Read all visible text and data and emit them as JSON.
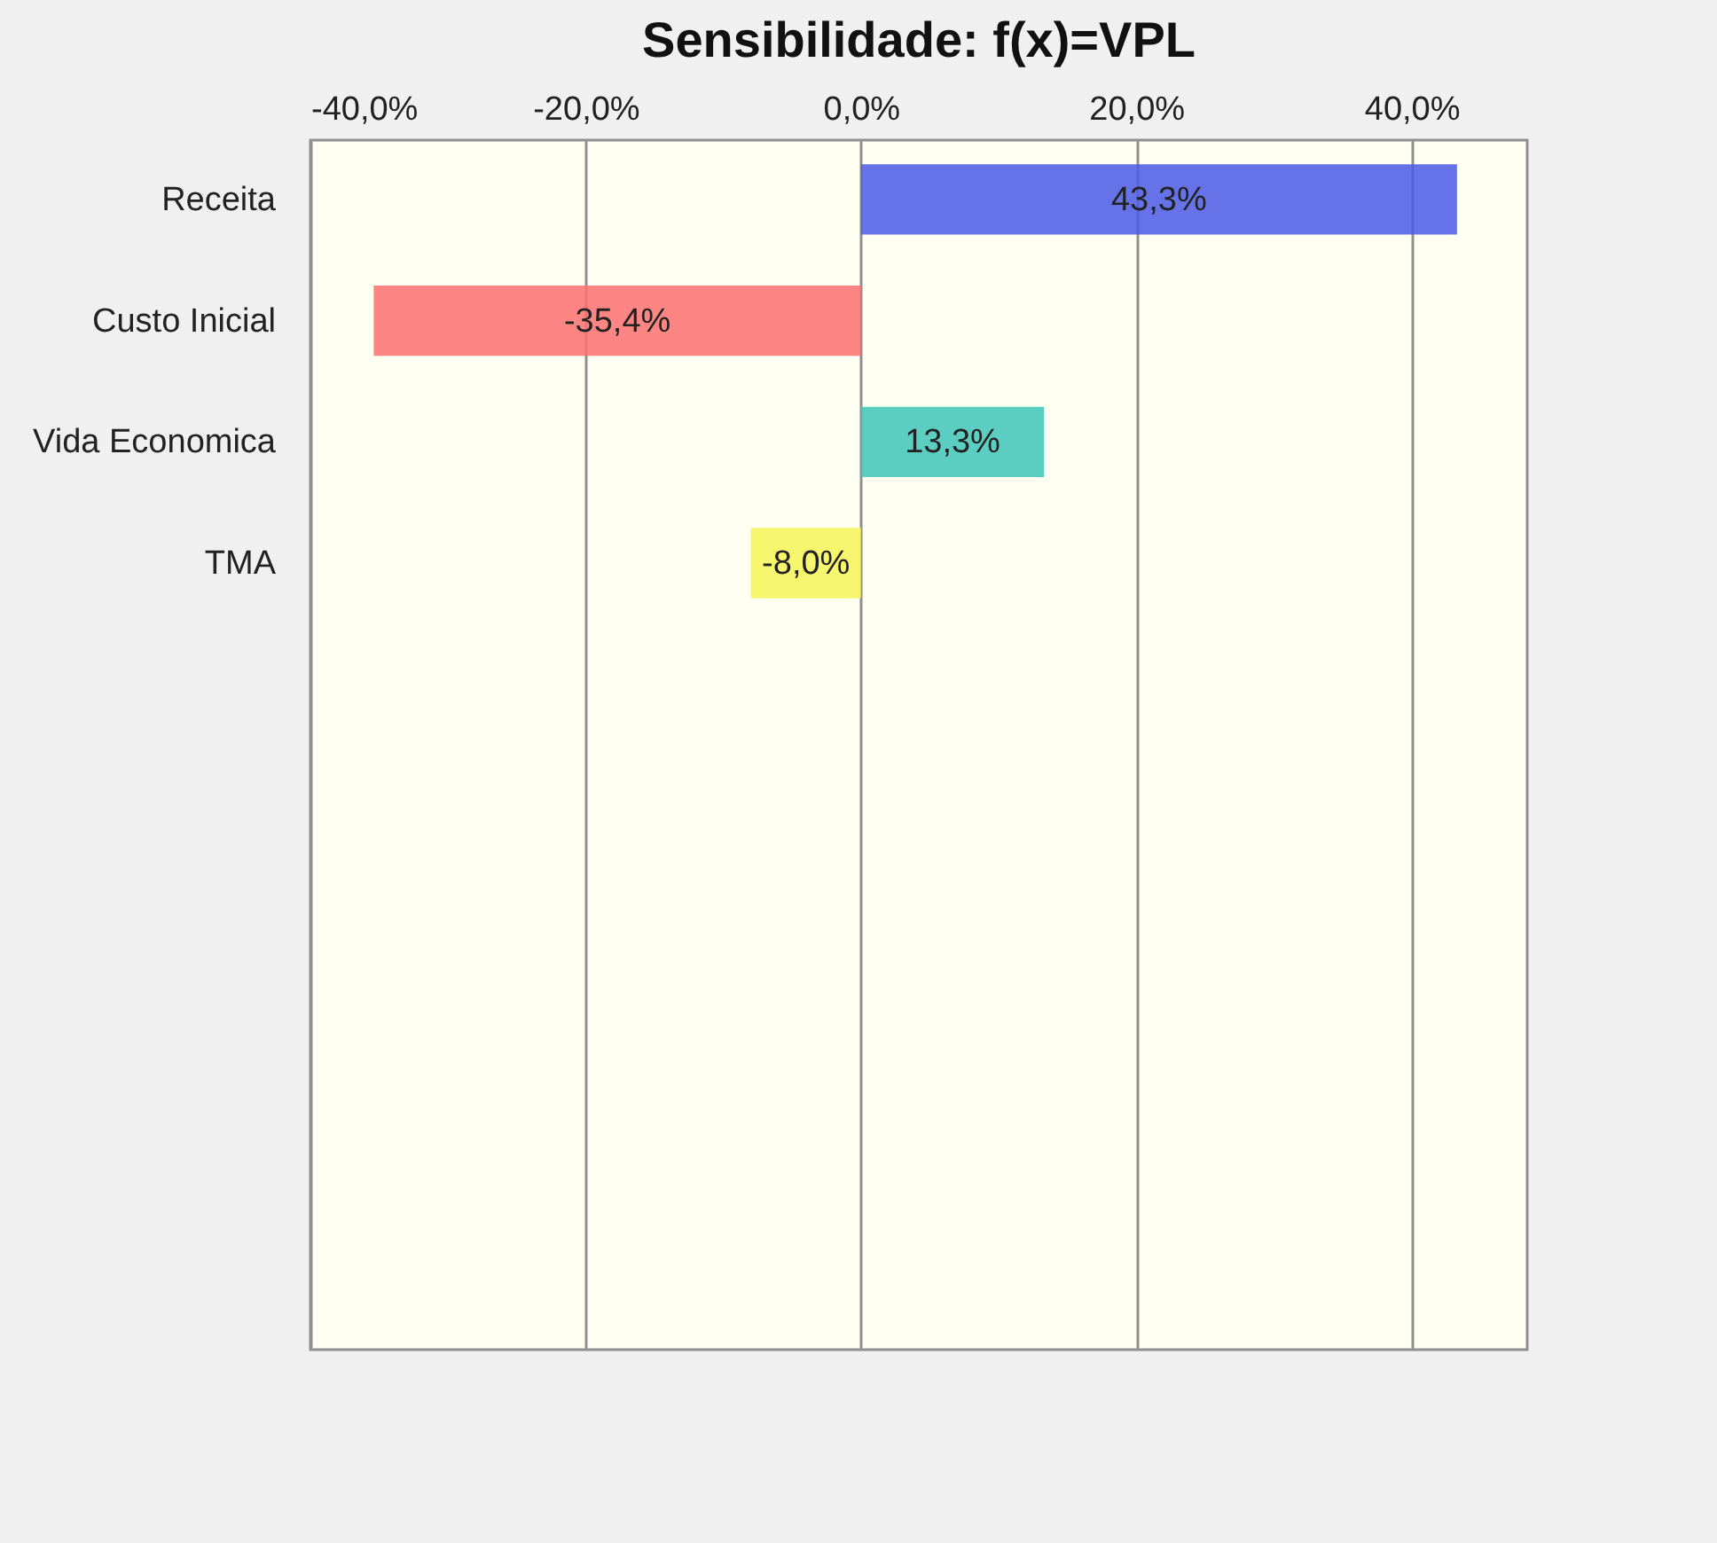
{
  "chart_data": {
    "type": "bar",
    "orientation": "horizontal",
    "title": "Sensibilidade: f(x)=VPL",
    "categories": [
      "Receita",
      "Custo Inicial",
      "Vida Economica",
      "TMA",
      null,
      null,
      null,
      null,
      null,
      null
    ],
    "values": [
      43.3,
      -35.4,
      13.3,
      -8.0,
      null,
      null,
      null,
      null,
      null,
      null
    ],
    "colors": [
      "#4b5be6",
      "#fd7070",
      "#40c4b8",
      "#f5f558",
      null,
      null,
      null,
      null,
      null,
      null
    ],
    "value_labels": [
      "43,3%",
      "-35,4%",
      "13,3%",
      "-8,0%",
      null,
      null,
      null,
      null,
      null,
      null
    ],
    "xlim": [
      -40,
      48.4
    ],
    "xticks": [
      {
        "value": -40,
        "label": "-40,0%"
      },
      {
        "value": -20,
        "label": "-20,0%"
      },
      {
        "value": 0,
        "label": "0,0%"
      },
      {
        "value": 20,
        "label": "20,0%"
      },
      {
        "value": 40,
        "label": "40,0%"
      }
    ],
    "grid": "x"
  }
}
